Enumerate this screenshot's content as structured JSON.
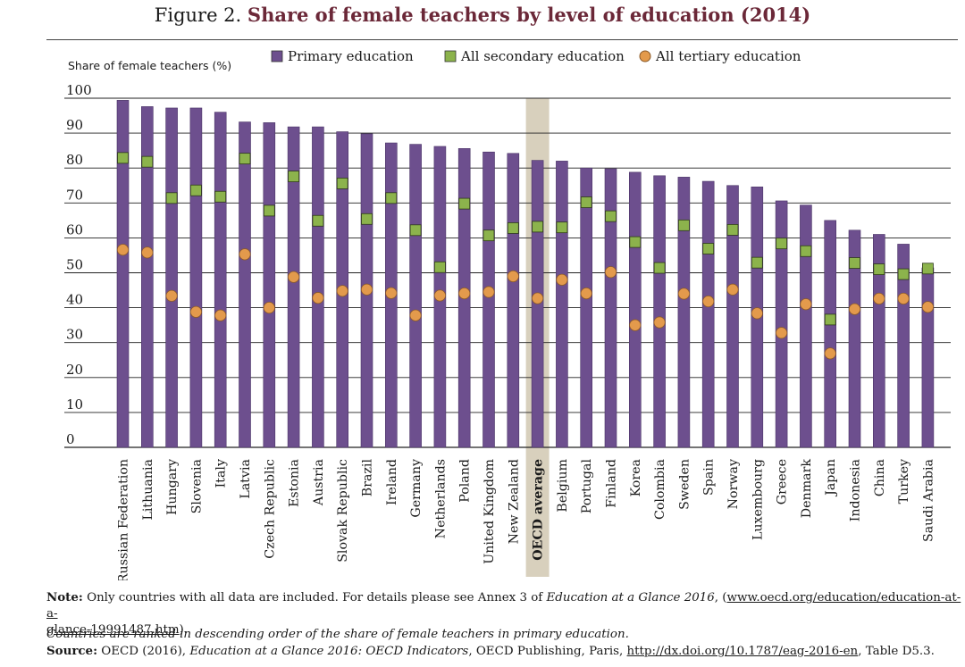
{
  "title": {
    "prefix": "Figure 2.",
    "main": "Share of female teachers by level of education (2014)"
  },
  "chart_data": {
    "type": "bar",
    "title": "Share of female teachers by level of education (2014)",
    "ylabel": "Share of female teachers (%)",
    "ylim": [
      0,
      100
    ],
    "yticks": [
      0,
      10,
      20,
      30,
      40,
      50,
      60,
      70,
      80,
      90,
      100
    ],
    "grid": true,
    "legend_position": "top",
    "highlight_category": "OECD average",
    "categories": [
      "Russian Federation",
      "Lithuania",
      "Hungary",
      "Slovenia",
      "Italy",
      "Latvia",
      "Czech Republic",
      "Estonia",
      "Austria",
      "Slovak Republic",
      "Brazil",
      "Ireland",
      "Germany",
      "Netherlands",
      "Poland",
      "United Kingdom",
      "New Zealand",
      "OECD average",
      "Belgium",
      "Portugal",
      "Finland",
      "Korea",
      "Colombia",
      "Sweden",
      "Spain",
      "Norway",
      "Luxembourg",
      "Greece",
      "Denmark",
      "Japan",
      "Indonesia",
      "China",
      "Turkey",
      "Saudi Arabia"
    ],
    "series": [
      {
        "name": "Primary education",
        "marker": "bar",
        "color": "#6d4f8e",
        "values": [
          99.4,
          97.6,
          97.2,
          97.2,
          96.0,
          93.2,
          93.0,
          91.8,
          91.8,
          90.4,
          89.8,
          87.2,
          86.8,
          86.2,
          85.6,
          84.6,
          84.2,
          82.2,
          82.0,
          80.0,
          79.8,
          78.8,
          77.8,
          77.4,
          76.2,
          75.0,
          74.6,
          70.6,
          69.4,
          65.0,
          62.2,
          61.0,
          58.2,
          51.4
        ]
      },
      {
        "name": "All secondary education",
        "marker": "square",
        "color": "#8cb34c",
        "values": [
          82.9,
          81.8,
          71.4,
          73.6,
          71.8,
          82.7,
          67.8,
          77.6,
          64.9,
          75.6,
          65.4,
          71.4,
          62.2,
          51.6,
          69.8,
          60.7,
          62.8,
          63.2,
          63.0,
          70.2,
          66.2,
          58.8,
          51.4,
          63.6,
          56.9,
          62.3,
          52.9,
          58.4,
          56.2,
          36.6,
          52.8,
          51.0,
          49.6,
          51.2
        ]
      },
      {
        "name": "All tertiary education",
        "marker": "circle",
        "color": "#e39a4c",
        "values": [
          56.6,
          55.8,
          43.4,
          38.8,
          37.8,
          55.3,
          40.0,
          48.8,
          42.8,
          44.8,
          45.2,
          44.2,
          37.8,
          43.5,
          44.1,
          44.5,
          49.0,
          42.7,
          48.0,
          44.1,
          50.2,
          35.0,
          35.8,
          44.0,
          41.8,
          45.2,
          38.4,
          32.8,
          41.0,
          26.9,
          39.6,
          42.6,
          42.6,
          40.2
        ]
      }
    ]
  },
  "notes": {
    "note_label": "Note:",
    "note_text_1": " Only countries with all data are included. For details please see Annex 3 of ",
    "note_italic": "Education at a Glance 2016",
    "note_text_2": ", (",
    "note_link_1": "www.oecd.org/education/education-at-a-",
    "note_link_2": "glance-19991487.htm",
    "note_text_3": ").",
    "ranking": "Countries are ranked in descending order of the share of female teachers in primary education.",
    "source_label": "Source:",
    "source_text_1": " OECD (2016), ",
    "source_italic": "Education at a Glance 2016: OECD Indicators",
    "source_text_2": ", OECD Publishing, Paris, ",
    "source_link": "http://dx.doi.org/10.1787/eag-2016-en",
    "source_text_3": ", Table D5.3."
  }
}
